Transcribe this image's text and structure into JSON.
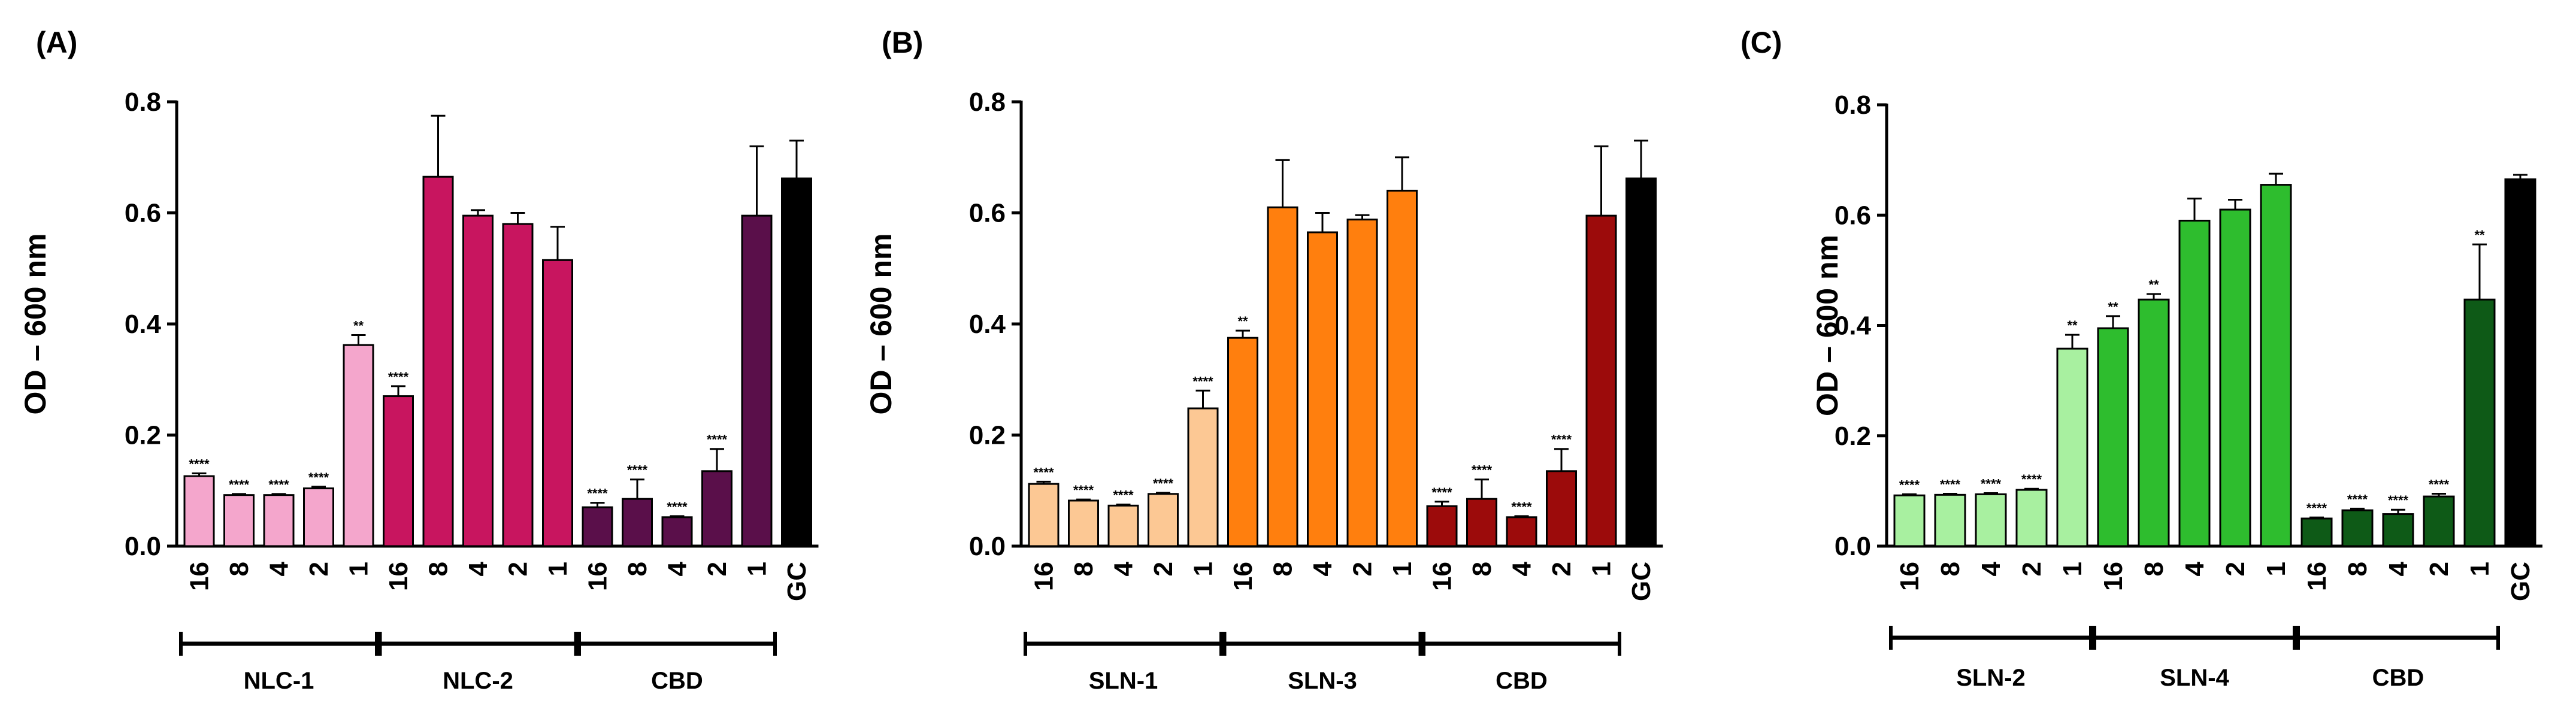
{
  "chart_data": [
    {
      "type": "bar",
      "panel_label": "(A)",
      "ylabel": "OD – 600 nm",
      "ylim": [
        0,
        0.8
      ],
      "yticks": [
        "0.0",
        "0.2",
        "0.4",
        "0.6",
        "0.8"
      ],
      "bars": [
        {
          "group": "NLC-1",
          "label": "16",
          "value": 0.126,
          "error": 0.005,
          "sig": "****",
          "color": "#f4a6cc"
        },
        {
          "group": "NLC-1",
          "label": "8",
          "value": 0.092,
          "error": 0.002,
          "sig": "****",
          "color": "#f4a6cc"
        },
        {
          "group": "NLC-1",
          "label": "4",
          "value": 0.092,
          "error": 0.002,
          "sig": "****",
          "color": "#f4a6cc"
        },
        {
          "group": "NLC-1",
          "label": "2",
          "value": 0.104,
          "error": 0.003,
          "sig": "****",
          "color": "#f4a6cc"
        },
        {
          "group": "NLC-1",
          "label": "1",
          "value": 0.362,
          "error": 0.018,
          "sig": "**",
          "color": "#f4a6cc"
        },
        {
          "group": "NLC-2",
          "label": "16",
          "value": 0.27,
          "error": 0.018,
          "sig": "****",
          "color": "#c8155f"
        },
        {
          "group": "NLC-2",
          "label": "8",
          "value": 0.665,
          "error": 0.11,
          "sig": "",
          "color": "#c8155f"
        },
        {
          "group": "NLC-2",
          "label": "4",
          "value": 0.595,
          "error": 0.01,
          "sig": "",
          "color": "#c8155f"
        },
        {
          "group": "NLC-2",
          "label": "2",
          "value": 0.58,
          "error": 0.02,
          "sig": "",
          "color": "#c8155f"
        },
        {
          "group": "NLC-2",
          "label": "1",
          "value": 0.515,
          "error": 0.06,
          "sig": "",
          "color": "#c8155f"
        },
        {
          "group": "CBD",
          "label": "16",
          "value": 0.07,
          "error": 0.008,
          "sig": "****",
          "color": "#5a0f4a"
        },
        {
          "group": "CBD",
          "label": "8",
          "value": 0.085,
          "error": 0.035,
          "sig": "****",
          "color": "#5a0f4a"
        },
        {
          "group": "CBD",
          "label": "4",
          "value": 0.052,
          "error": 0.002,
          "sig": "****",
          "color": "#5a0f4a"
        },
        {
          "group": "CBD",
          "label": "2",
          "value": 0.135,
          "error": 0.04,
          "sig": "****",
          "color": "#5a0f4a"
        },
        {
          "group": "CBD",
          "label": "1",
          "value": 0.595,
          "error": 0.125,
          "sig": "",
          "color": "#5a0f4a"
        },
        {
          "group": "",
          "label": "GC",
          "value": 0.662,
          "error": 0.068,
          "sig": "",
          "color": "#000000"
        }
      ],
      "groups": [
        "NLC-1",
        "NLC-2",
        "CBD"
      ]
    },
    {
      "type": "bar",
      "panel_label": "(B)",
      "ylabel": "OD – 600 nm",
      "ylim": [
        0,
        0.8
      ],
      "yticks": [
        "0.0",
        "0.2",
        "0.4",
        "0.6",
        "0.8"
      ],
      "bars": [
        {
          "group": "SLN-1",
          "label": "16",
          "value": 0.112,
          "error": 0.004,
          "sig": "****",
          "color": "#fcc894"
        },
        {
          "group": "SLN-1",
          "label": "8",
          "value": 0.082,
          "error": 0.002,
          "sig": "****",
          "color": "#fcc894"
        },
        {
          "group": "SLN-1",
          "label": "4",
          "value": 0.073,
          "error": 0.002,
          "sig": "****",
          "color": "#fcc894"
        },
        {
          "group": "SLN-1",
          "label": "2",
          "value": 0.094,
          "error": 0.002,
          "sig": "****",
          "color": "#fcc894"
        },
        {
          "group": "SLN-1",
          "label": "1",
          "value": 0.248,
          "error": 0.032,
          "sig": "****",
          "color": "#fcc894"
        },
        {
          "group": "SLN-3",
          "label": "16",
          "value": 0.375,
          "error": 0.013,
          "sig": "**",
          "color": "#ff7f0e"
        },
        {
          "group": "SLN-3",
          "label": "8",
          "value": 0.61,
          "error": 0.085,
          "sig": "",
          "color": "#ff7f0e"
        },
        {
          "group": "SLN-3",
          "label": "4",
          "value": 0.565,
          "error": 0.035,
          "sig": "",
          "color": "#ff7f0e"
        },
        {
          "group": "SLN-3",
          "label": "2",
          "value": 0.588,
          "error": 0.008,
          "sig": "",
          "color": "#ff7f0e"
        },
        {
          "group": "SLN-3",
          "label": "1",
          "value": 0.64,
          "error": 0.06,
          "sig": "",
          "color": "#ff7f0e"
        },
        {
          "group": "CBD",
          "label": "16",
          "value": 0.072,
          "error": 0.008,
          "sig": "****",
          "color": "#9c0b0b"
        },
        {
          "group": "CBD",
          "label": "8",
          "value": 0.085,
          "error": 0.035,
          "sig": "****",
          "color": "#9c0b0b"
        },
        {
          "group": "CBD",
          "label": "4",
          "value": 0.052,
          "error": 0.002,
          "sig": "****",
          "color": "#9c0b0b"
        },
        {
          "group": "CBD",
          "label": "2",
          "value": 0.135,
          "error": 0.04,
          "sig": "****",
          "color": "#9c0b0b"
        },
        {
          "group": "CBD",
          "label": "1",
          "value": 0.595,
          "error": 0.125,
          "sig": "",
          "color": "#9c0b0b"
        },
        {
          "group": "",
          "label": "GC",
          "value": 0.662,
          "error": 0.068,
          "sig": "",
          "color": "#000000"
        }
      ],
      "groups": [
        "SLN-1",
        "SLN-3",
        "CBD"
      ]
    },
    {
      "type": "bar",
      "panel_label": "(C)",
      "ylabel": "OD – 600 nm",
      "ylim": [
        0,
        0.8
      ],
      "yticks": [
        "0.0",
        "0.2",
        "0.4",
        "0.6",
        "0.8"
      ],
      "bars": [
        {
          "group": "SLN-2",
          "label": "16",
          "value": 0.092,
          "error": 0.002,
          "sig": "****",
          "color": "#a8f0a0"
        },
        {
          "group": "SLN-2",
          "label": "8",
          "value": 0.093,
          "error": 0.002,
          "sig": "****",
          "color": "#a8f0a0"
        },
        {
          "group": "SLN-2",
          "label": "4",
          "value": 0.094,
          "error": 0.002,
          "sig": "****",
          "color": "#a8f0a0"
        },
        {
          "group": "SLN-2",
          "label": "2",
          "value": 0.102,
          "error": 0.002,
          "sig": "****",
          "color": "#a8f0a0"
        },
        {
          "group": "SLN-2",
          "label": "1",
          "value": 0.358,
          "error": 0.025,
          "sig": "**",
          "color": "#a8f0a0"
        },
        {
          "group": "SLN-4",
          "label": "16",
          "value": 0.395,
          "error": 0.022,
          "sig": "**",
          "color": "#2ebd2e"
        },
        {
          "group": "SLN-4",
          "label": "8",
          "value": 0.447,
          "error": 0.01,
          "sig": "**",
          "color": "#2ebd2e"
        },
        {
          "group": "SLN-4",
          "label": "4",
          "value": 0.59,
          "error": 0.04,
          "sig": "",
          "color": "#2ebd2e"
        },
        {
          "group": "SLN-4",
          "label": "2",
          "value": 0.61,
          "error": 0.018,
          "sig": "",
          "color": "#2ebd2e"
        },
        {
          "group": "SLN-4",
          "label": "1",
          "value": 0.655,
          "error": 0.02,
          "sig": "",
          "color": "#2ebd2e"
        },
        {
          "group": "CBD",
          "label": "16",
          "value": 0.05,
          "error": 0.002,
          "sig": "****",
          "color": "#0e5a17"
        },
        {
          "group": "CBD",
          "label": "8",
          "value": 0.065,
          "error": 0.003,
          "sig": "****",
          "color": "#0e5a17"
        },
        {
          "group": "CBD",
          "label": "4",
          "value": 0.058,
          "error": 0.008,
          "sig": "****",
          "color": "#0e5a17"
        },
        {
          "group": "CBD",
          "label": "2",
          "value": 0.09,
          "error": 0.005,
          "sig": "****",
          "color": "#0e5a17"
        },
        {
          "group": "CBD",
          "label": "1",
          "value": 0.447,
          "error": 0.1,
          "sig": "**",
          "color": "#0e5a17"
        },
        {
          "group": "",
          "label": "GC",
          "value": 0.665,
          "error": 0.008,
          "sig": "",
          "color": "#000000"
        }
      ],
      "groups": [
        "SLN-2",
        "SLN-4",
        "CBD"
      ]
    }
  ]
}
